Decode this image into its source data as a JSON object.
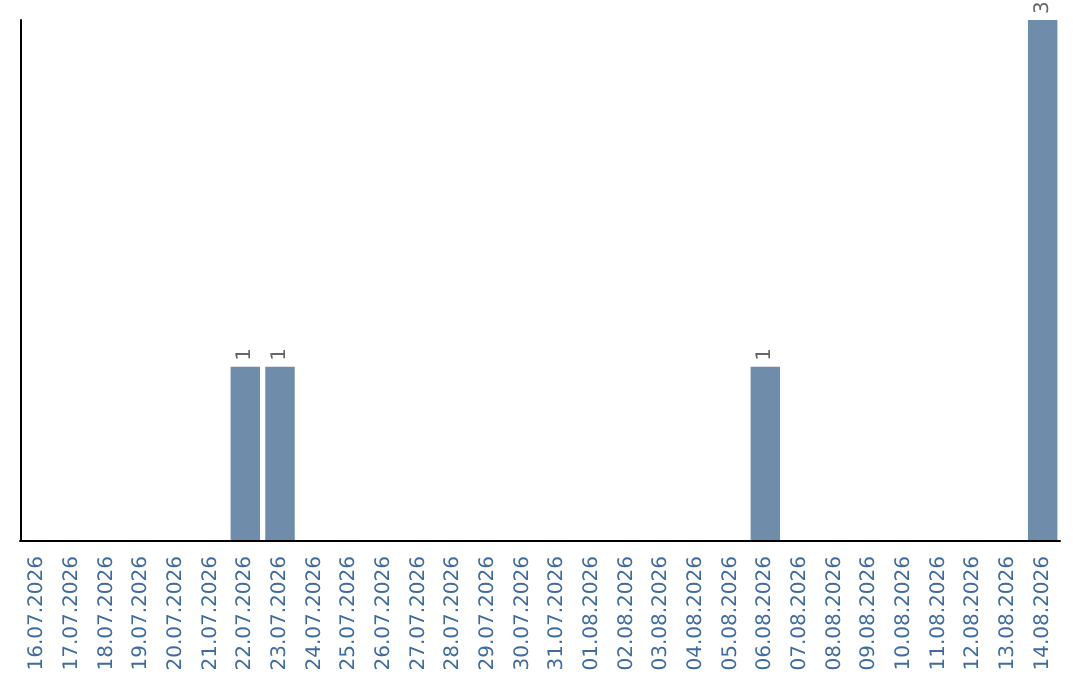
{
  "chart_data": {
    "type": "bar",
    "categories": [
      "16.07.2026",
      "17.07.2026",
      "18.07.2026",
      "19.07.2026",
      "20.07.2026",
      "21.07.2026",
      "22.07.2026",
      "23.07.2026",
      "24.07.2026",
      "25.07.2026",
      "26.07.2026",
      "27.07.2026",
      "28.07.2026",
      "29.07.2026",
      "30.07.2026",
      "31.07.2026",
      "01.08.2026",
      "02.08.2026",
      "03.08.2026",
      "04.08.2026",
      "05.08.2026",
      "06.08.2026",
      "07.08.2026",
      "08.08.2026",
      "09.08.2026",
      "10.08.2026",
      "11.08.2026",
      "12.08.2026",
      "13.08.2026",
      "14.08.2026"
    ],
    "values": [
      0,
      0,
      0,
      0,
      0,
      0,
      1,
      1,
      0,
      0,
      0,
      0,
      0,
      0,
      0,
      0,
      0,
      0,
      0,
      0,
      0,
      1,
      0,
      0,
      0,
      0,
      0,
      0,
      0,
      3
    ],
    "value_labels": [
      null,
      null,
      null,
      null,
      null,
      null,
      "1",
      "1",
      null,
      null,
      null,
      null,
      null,
      null,
      null,
      null,
      null,
      null,
      null,
      null,
      null,
      "1",
      null,
      null,
      null,
      null,
      null,
      null,
      null,
      "3"
    ],
    "color": "#6f8cab",
    "grid": false,
    "tick_labels": "x"
  }
}
